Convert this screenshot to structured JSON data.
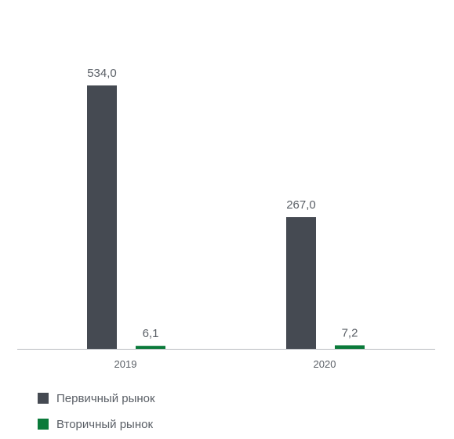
{
  "chart_data": {
    "type": "bar",
    "categories": [
      "2019",
      "2020"
    ],
    "series": [
      {
        "name": "Первичный рынок",
        "values": [
          534.0,
          267.0
        ],
        "labels": [
          "534,0",
          "267,0"
        ],
        "color": "#454a52"
      },
      {
        "name": "Вторичный рынок",
        "values": [
          6.1,
          7.2
        ],
        "labels": [
          "6,1",
          "7,2"
        ],
        "color": "#0a7a3a"
      }
    ],
    "title": "",
    "xlabel": "",
    "ylabel": "",
    "ylim": [
      0,
      534.0
    ],
    "grid": false,
    "legend": "bottom-left"
  }
}
